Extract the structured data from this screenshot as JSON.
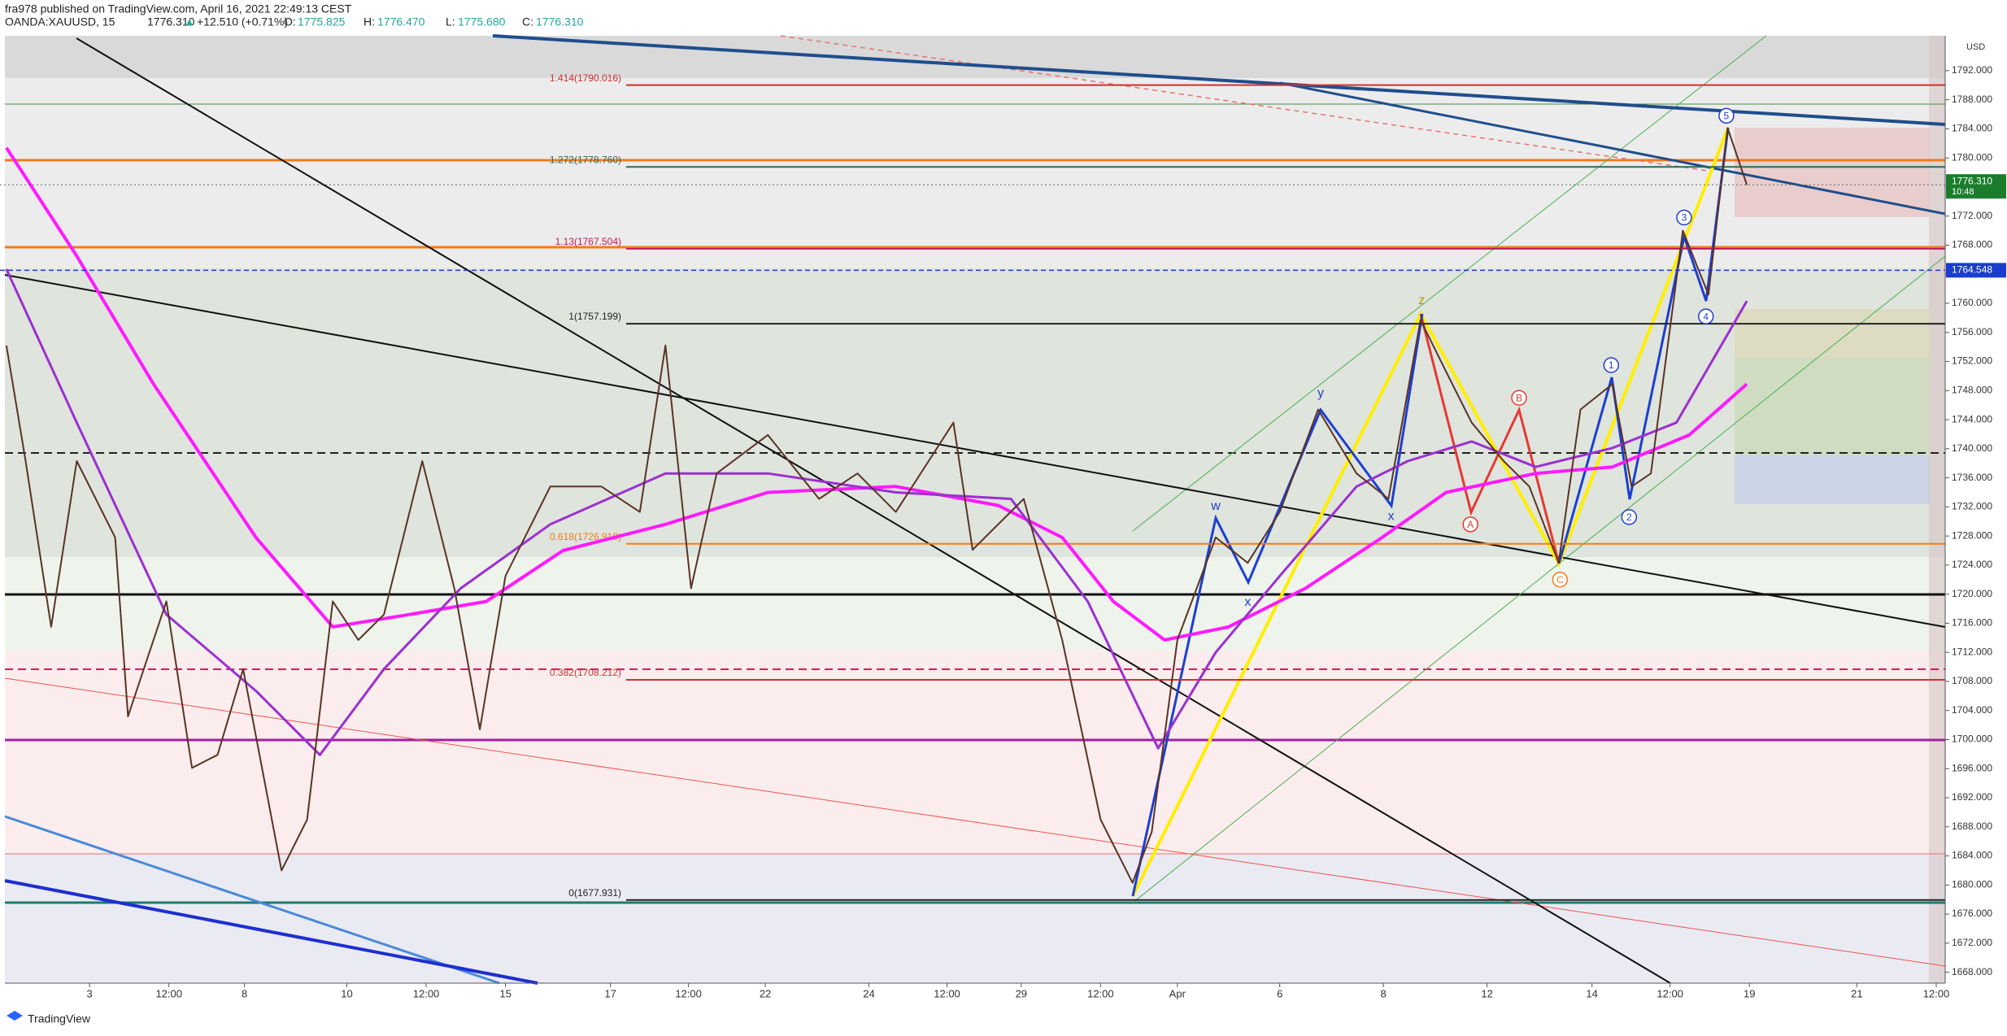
{
  "header": {
    "publisher": "fra978 published on TradingView.com, April 16, 2021 22:49:13 CEST",
    "symbol": "OANDA:XAUUSD, 15",
    "last": "1776.310",
    "arrow": "▲",
    "change": "+12.510 (+0.71%)",
    "open_label": "O:",
    "open": "1775.825",
    "high_label": "H:",
    "high": "1776.470",
    "low_label": "L:",
    "low": "1775.680",
    "close_label": "C:",
    "close": "1776.310"
  },
  "footer": {
    "brand": "TradingView"
  },
  "chart_data": {
    "type": "line",
    "y_unit": "USD",
    "grid": false,
    "xlim": [
      0,
      1520
    ],
    "xticks": [
      {
        "value": 70,
        "label": "3"
      },
      {
        "value": 132,
        "label": "12:00"
      },
      {
        "value": 191,
        "label": "8"
      },
      {
        "value": 271,
        "label": "10"
      },
      {
        "value": 333,
        "label": "12:00"
      },
      {
        "value": 395,
        "label": "15"
      },
      {
        "value": 477,
        "label": "17"
      },
      {
        "value": 538,
        "label": "12:00"
      },
      {
        "value": 598,
        "label": "22"
      },
      {
        "value": 679,
        "label": "24"
      },
      {
        "value": 740,
        "label": "12:00"
      },
      {
        "value": 798,
        "label": "29"
      },
      {
        "value": 860,
        "label": "12:00"
      },
      {
        "value": 920,
        "label": "Apr"
      },
      {
        "value": 1000,
        "label": "6"
      },
      {
        "value": 1081,
        "label": "8"
      },
      {
        "value": 1162,
        "label": "12"
      },
      {
        "value": 1244,
        "label": "14"
      },
      {
        "value": 1305,
        "label": "12:00"
      },
      {
        "value": 1367,
        "label": "19"
      },
      {
        "value": 1451,
        "label": "21"
      },
      {
        "value": 1513,
        "label": "12:00"
      }
    ],
    "ylim": [
      1666.5,
      1796.8
    ],
    "yticks": [
      {
        "value": 1668,
        "label": "1668.000"
      },
      {
        "value": 1672,
        "label": "1672.000"
      },
      {
        "value": 1676,
        "label": "1676.000"
      },
      {
        "value": 1680,
        "label": "1680.000"
      },
      {
        "value": 1684,
        "label": "1684.000"
      },
      {
        "value": 1688,
        "label": "1688.000"
      },
      {
        "value": 1692,
        "label": "1692.000"
      },
      {
        "value": 1696,
        "label": "1696.000"
      },
      {
        "value": 1700,
        "label": "1700.000"
      },
      {
        "value": 1704,
        "label": "1704.000"
      },
      {
        "value": 1708,
        "label": "1708.000"
      },
      {
        "value": 1712,
        "label": "1712.000"
      },
      {
        "value": 1716,
        "label": "1716.000"
      },
      {
        "value": 1720,
        "label": "1720.000"
      },
      {
        "value": 1724,
        "label": "1724.000"
      },
      {
        "value": 1728,
        "label": "1728.000"
      },
      {
        "value": 1732,
        "label": "1732.000"
      },
      {
        "value": 1736,
        "label": "1736.000"
      },
      {
        "value": 1740,
        "label": "1740.000"
      },
      {
        "value": 1744,
        "label": "1744.000"
      },
      {
        "value": 1748,
        "label": "1748.000"
      },
      {
        "value": 1752,
        "label": "1752.000"
      },
      {
        "value": 1756,
        "label": "1756.000"
      },
      {
        "value": 1760,
        "label": "1760.000"
      },
      {
        "value": 1764,
        "label": "1764.000"
      },
      {
        "value": 1768,
        "label": "1768.000"
      },
      {
        "value": 1772,
        "label": "1772.000"
      },
      {
        "value": 1776,
        "label": "1776.000"
      },
      {
        "value": 1780,
        "label": "1780.000"
      },
      {
        "value": 1784,
        "label": "1784.000"
      },
      {
        "value": 1788,
        "label": "1788.000"
      },
      {
        "value": 1792,
        "label": "1792.000"
      }
    ],
    "series": [
      {
        "color": "#ff1aff",
        "width": 4,
        "x": [
          5,
          60,
          120,
          200,
          260,
          320,
          380,
          440,
          520,
          600,
          700,
          780,
          830,
          870,
          910,
          960,
          1020,
          1080,
          1130,
          1200,
          1260,
          1320,
          1365
        ],
        "values": [
          1781.4,
          1766.5,
          1748.9,
          1727.8,
          1715.5,
          1717.2,
          1719,
          1726,
          1729.6,
          1734,
          1734.8,
          1732.2,
          1727.8,
          1719,
          1713.7,
          1715.5,
          1720.8,
          1727.8,
          1734,
          1736.6,
          1737.5,
          1741.9,
          1748.9
        ]
      },
      {
        "color": "#9b30d0",
        "width": 3,
        "x": [
          5,
          60,
          130,
          200,
          250,
          300,
          360,
          430,
          520,
          600,
          700,
          790,
          850,
          905,
          950,
          1000,
          1060,
          1100,
          1150,
          1200,
          1260,
          1310,
          1365
        ],
        "values": [
          1764.7,
          1743.6,
          1717.2,
          1706.7,
          1697.9,
          1709.7,
          1720.8,
          1729.6,
          1736.6,
          1736.6,
          1734,
          1733.1,
          1719,
          1698.8,
          1712,
          1722.5,
          1734.8,
          1738.3,
          1741,
          1737.5,
          1740.1,
          1743.6,
          1760.3
        ]
      },
      {
        "color": "#5a3324",
        "width": 2,
        "x": [
          5,
          20,
          40,
          60,
          90,
          100,
          130,
          150,
          170,
          190,
          220,
          240,
          260,
          280,
          300,
          330,
          355,
          375,
          395,
          430,
          470,
          500,
          520,
          540,
          560,
          600,
          640,
          670,
          700,
          745,
          760,
          800,
          830,
          860,
          885,
          900,
          920,
          950,
          975,
          1000,
          1030,
          1060,
          1085,
          1110,
          1130,
          1150,
          1175,
          1195,
          1218,
          1235,
          1260,
          1275,
          1290,
          1315,
          1335,
          1350,
          1365
        ],
        "values": [
          1754.2,
          1738.3,
          1715.5,
          1738.3,
          1727.8,
          1703.2,
          1719,
          1696.1,
          1697.9,
          1709.7,
          1682,
          1689,
          1719,
          1713.7,
          1717.2,
          1738.3,
          1720.8,
          1701.4,
          1722.5,
          1734.8,
          1734.8,
          1731.3,
          1754.2,
          1720.8,
          1736.6,
          1741.9,
          1733.1,
          1736.6,
          1731.3,
          1743.6,
          1726.1,
          1733.1,
          1713.7,
          1689,
          1680.3,
          1687.3,
          1713.7,
          1727.8,
          1724.3,
          1731.3,
          1745.4,
          1736.6,
          1733.1,
          1757.7,
          1750.6,
          1743.6,
          1738.3,
          1734.8,
          1724.3,
          1745.4,
          1748.9,
          1734.8,
          1736.6,
          1770,
          1761.2,
          1784.1,
          1776.3
        ]
      }
    ],
    "fib_levels": [
      {
        "label": "1.414(1790.016)",
        "value": 1790.016,
        "color": "#d32f2f"
      },
      {
        "label": "1.272(1778.760)",
        "value": 1778.76,
        "color": "#2e6b5a"
      },
      {
        "label": "1.13(1767.504)",
        "value": 1767.504,
        "color": "#c2185b"
      },
      {
        "label": "1(1757.199)",
        "value": 1757.199,
        "color": "#222222"
      },
      {
        "label": "0.618(1726.919)",
        "value": 1726.919,
        "color": "#ef7d1a"
      },
      {
        "label": "0.382(1708.212)",
        "value": 1708.212,
        "color": "#d32f2f"
      },
      {
        "label": "0(1677.931)",
        "value": 1677.931,
        "color": "#222222"
      }
    ],
    "annotations": [
      {
        "text": "w",
        "x": 950,
        "y": 1732.2,
        "color": "#1d3fd0",
        "circle": false
      },
      {
        "text": "x",
        "x": 975,
        "y": 1719,
        "color": "#1d3fd0",
        "circle": false
      },
      {
        "text": "y",
        "x": 1032,
        "y": 1747.7,
        "color": "#1d3fd0",
        "circle": false
      },
      {
        "text": "x",
        "x": 1087,
        "y": 1730.8,
        "color": "#1d3fd0",
        "circle": false
      },
      {
        "text": "z",
        "x": 1111,
        "y": 1760.5,
        "color": "#b59a00",
        "circle": false
      },
      {
        "text": "A",
        "x": 1149,
        "y": 1729.6,
        "color": "#e53935",
        "circle": true
      },
      {
        "text": "B",
        "x": 1187,
        "y": 1747,
        "color": "#e53935",
        "circle": true
      },
      {
        "text": "C",
        "x": 1219,
        "y": 1722,
        "color": "#ef7d1a",
        "circle": true
      },
      {
        "text": "1",
        "x": 1259,
        "y": 1751.5,
        "color": "#1d3fd0",
        "circle": true
      },
      {
        "text": "2",
        "x": 1273,
        "y": 1730.6,
        "color": "#1d3fd0",
        "circle": true
      },
      {
        "text": "3",
        "x": 1316,
        "y": 1771.8,
        "color": "#1d3fd0",
        "circle": true
      },
      {
        "text": "4",
        "x": 1333,
        "y": 1758.2,
        "color": "#1d3fd0",
        "circle": true
      },
      {
        "text": "5",
        "x": 1349,
        "y": 1785.8,
        "color": "#1d3fd0",
        "circle": true
      }
    ],
    "current_price": {
      "value": 1776.31,
      "label": "1776.310",
      "countdown": "10:48",
      "color": "#1b7d2c"
    },
    "alert_price": {
      "value": 1764.548,
      "label": "1764.548",
      "color": "#1a3ccf"
    }
  }
}
